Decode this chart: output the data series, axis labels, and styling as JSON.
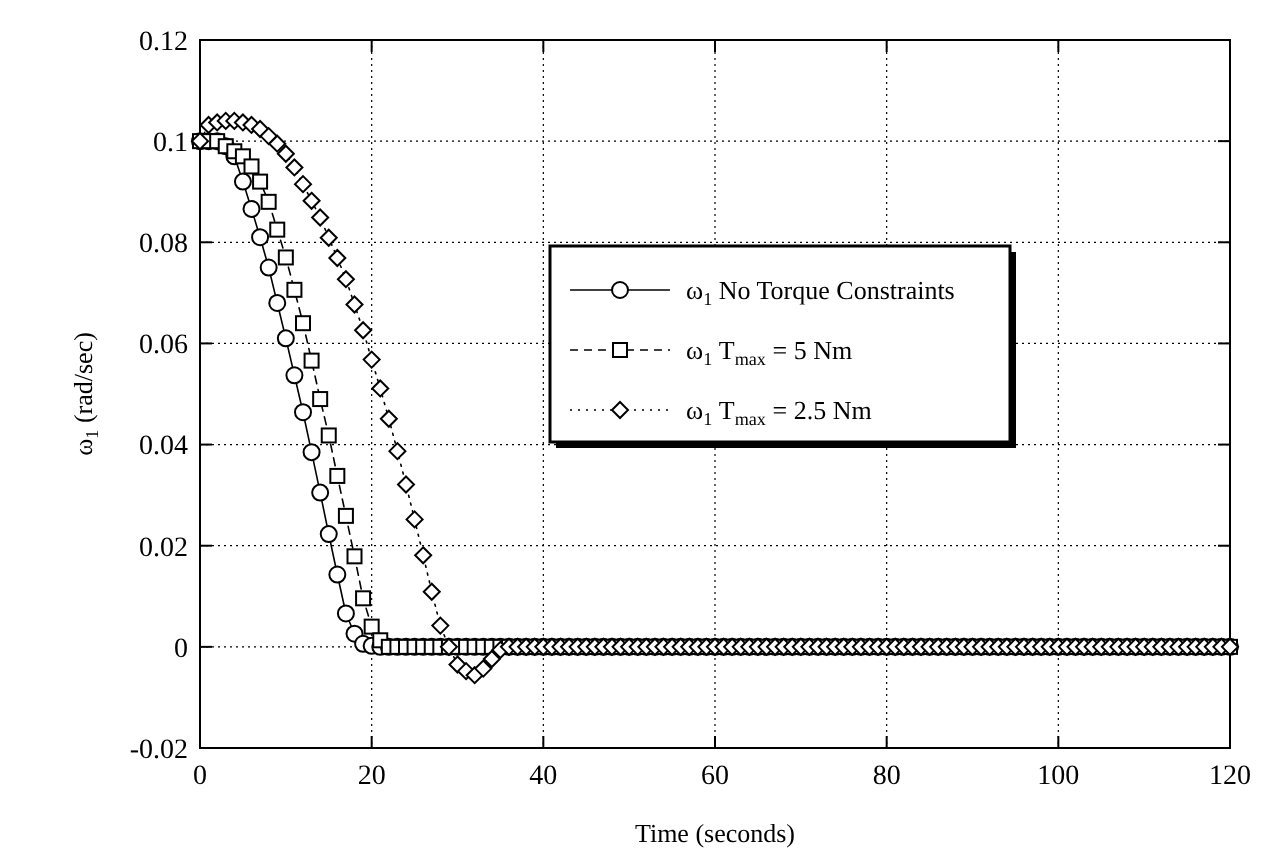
{
  "chart_data": {
    "type": "line",
    "xlabel": "Time (seconds)",
    "ylabel": "ω$_{1}$ (rad/sec)",
    "x": [
      0,
      1,
      2,
      3,
      4,
      5,
      6,
      7,
      8,
      9,
      10,
      11,
      12,
      13,
      14,
      15,
      16,
      17,
      18,
      19,
      20,
      21,
      22,
      23,
      24,
      25,
      26,
      27,
      28,
      29,
      30,
      31,
      32,
      33,
      34,
      35,
      36,
      37,
      38,
      39,
      40,
      41,
      42,
      43,
      44,
      45,
      46,
      47,
      48,
      49,
      50,
      51,
      52,
      53,
      54,
      55,
      56,
      57,
      58,
      59,
      60,
      61,
      62,
      63,
      64,
      65,
      66,
      67,
      68,
      69,
      70,
      71,
      72,
      73,
      74,
      75,
      76,
      77,
      78,
      79,
      80,
      81,
      82,
      83,
      84,
      85,
      86,
      87,
      88,
      89,
      90,
      91,
      92,
      93,
      94,
      95,
      96,
      97,
      98,
      99,
      100,
      101,
      102,
      103,
      104,
      105,
      106,
      107,
      108,
      109,
      110,
      111,
      112,
      113,
      114,
      115,
      116,
      117,
      118,
      119,
      120
    ],
    "series": [
      {
        "name": "ω$_{1}$ No Torque Constraints",
        "color": "#000000",
        "marker": "circle",
        "line_style": "solid",
        "values": [
          0.1,
          0.1,
          0.1,
          0.099,
          0.097,
          0.092,
          0.0866,
          0.081,
          0.075,
          0.068,
          0.061,
          0.0537,
          0.0464,
          0.0385,
          0.0305,
          0.0223,
          0.0143,
          0.0066,
          0.0026,
          0.0006,
          0.0002,
          0,
          0,
          0,
          0,
          0,
          0,
          0,
          0,
          0,
          0,
          0,
          0,
          0,
          0,
          0,
          0,
          0,
          0,
          0,
          0,
          0,
          0,
          0,
          0,
          0,
          0,
          0,
          0,
          0,
          0,
          0,
          0,
          0,
          0,
          0,
          0,
          0,
          0,
          0,
          0,
          0,
          0,
          0,
          0,
          0,
          0,
          0,
          0,
          0,
          0,
          0,
          0,
          0,
          0,
          0,
          0,
          0,
          0,
          0,
          0,
          0,
          0,
          0,
          0,
          0,
          0,
          0,
          0,
          0,
          0,
          0,
          0,
          0,
          0,
          0,
          0,
          0,
          0,
          0,
          0,
          0,
          0,
          0,
          0,
          0,
          0,
          0,
          0,
          0,
          0,
          0,
          0,
          0,
          0,
          0,
          0,
          0,
          0,
          0,
          0
        ]
      },
      {
        "name": "ω$_{1}$ T$_{max}$ = 5 Nm",
        "color": "#000000",
        "marker": "square",
        "line_style": "dashed",
        "values": [
          0.1,
          0.1,
          0.1,
          0.099,
          0.098,
          0.097,
          0.095,
          0.092,
          0.088,
          0.0825,
          0.077,
          0.0706,
          0.064,
          0.0566,
          0.049,
          0.0418,
          0.0338,
          0.0259,
          0.0179,
          0.0096,
          0.004,
          0.0013,
          0,
          0,
          0,
          0,
          0,
          0,
          0,
          0,
          0,
          0,
          0,
          0,
          0,
          0,
          0,
          0,
          0,
          0,
          0,
          0,
          0,
          0,
          0,
          0,
          0,
          0,
          0,
          0,
          0,
          0,
          0,
          0,
          0,
          0,
          0,
          0,
          0,
          0,
          0,
          0,
          0,
          0,
          0,
          0,
          0,
          0,
          0,
          0,
          0,
          0,
          0,
          0,
          0,
          0,
          0,
          0,
          0,
          0,
          0,
          0,
          0,
          0,
          0,
          0,
          0,
          0,
          0,
          0,
          0,
          0,
          0,
          0,
          0,
          0,
          0,
          0,
          0,
          0,
          0,
          0,
          0,
          0,
          0,
          0,
          0,
          0,
          0,
          0,
          0,
          0,
          0,
          0,
          0,
          0,
          0,
          0,
          0,
          0,
          0
        ]
      },
      {
        "name": "ω$_{1}$ T$_{max}$ = 2.5 Nm",
        "color": "#000000",
        "marker": "diamond",
        "line_style": "dotted",
        "values": [
          0.1,
          0.1032,
          0.1037,
          0.104,
          0.104,
          0.1037,
          0.1032,
          0.1024,
          0.101,
          0.0995,
          0.0975,
          0.0948,
          0.0915,
          0.0882,
          0.0849,
          0.0809,
          0.0769,
          0.0727,
          0.0677,
          0.0626,
          0.0568,
          0.0511,
          0.0451,
          0.0387,
          0.0321,
          0.0252,
          0.0181,
          0.0109,
          0.0042,
          0,
          -0.0035,
          -0.0048,
          -0.0056,
          -0.0043,
          -0.0024,
          -0.0006,
          0,
          0,
          0,
          0,
          0,
          0,
          0,
          0,
          0,
          0,
          0,
          0,
          0,
          0,
          0,
          0,
          0,
          0,
          0,
          0,
          0,
          0,
          0,
          0,
          0,
          0,
          0,
          0,
          0,
          0,
          0,
          0,
          0,
          0,
          0,
          0,
          0,
          0,
          0,
          0,
          0,
          0,
          0,
          0,
          0,
          0,
          0,
          0,
          0,
          0,
          0,
          0,
          0,
          0,
          0,
          0,
          0,
          0,
          0,
          0,
          0,
          0,
          0,
          0,
          0,
          0,
          0,
          0,
          0,
          0,
          0,
          0,
          0,
          0,
          0,
          0,
          0,
          0,
          0,
          0,
          0,
          0,
          0,
          0,
          0
        ]
      }
    ],
    "xlim": [
      0,
      120
    ],
    "xticks": [
      0,
      20,
      40,
      60,
      80,
      100,
      120
    ],
    "ylim": [
      -0.02,
      0.12
    ],
    "yticks": [
      -0.02,
      0,
      0.02,
      0.04,
      0.06,
      0.08,
      0.1,
      0.12
    ],
    "grid": true,
    "legend": "right"
  }
}
